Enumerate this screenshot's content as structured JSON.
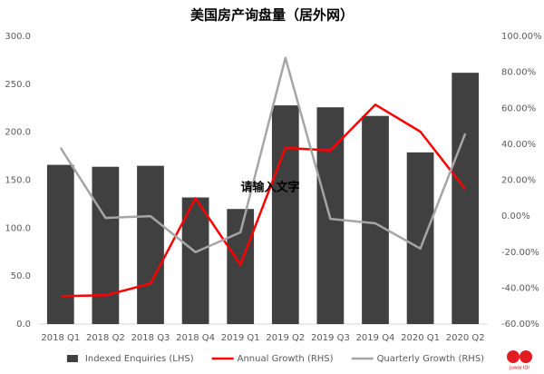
{
  "chart_data": {
    "type": "bar",
    "title": "美国房产询盘量（居外网）",
    "categories": [
      "2018 Q1",
      "2018 Q2",
      "2018 Q3",
      "2018 Q4",
      "2019 Q1",
      "2019 Q2",
      "2019 Q3",
      "2019 Q4",
      "2020 Q1",
      "2020 Q2"
    ],
    "series": [
      {
        "name": "Indexed Enquiries (LHS)",
        "type": "bar",
        "color": "#404040",
        "values": [
          166,
          164,
          165,
          132,
          120,
          228,
          226,
          217,
          179,
          262
        ]
      },
      {
        "name": "Annual Growth (RHS)",
        "type": "line",
        "axis": "y2",
        "color": "#ff0000",
        "values": [
          -44.5,
          -44,
          -37.5,
          10,
          -27,
          38,
          36.5,
          62,
          47,
          15
        ]
      },
      {
        "name": "Quarterly Growth (RHS)",
        "type": "line",
        "axis": "y2",
        "color": "#a5a5a5",
        "values": [
          38,
          -1,
          0,
          -20,
          -9,
          88,
          -1.5,
          -4,
          -18,
          46
        ]
      }
    ],
    "ylim": [
      0,
      300
    ],
    "yticks": [
      {
        "value": 0,
        "label": "0.0"
      },
      {
        "value": 50,
        "label": "50.0"
      },
      {
        "value": 100,
        "label": "100.0"
      },
      {
        "value": 150,
        "label": "150.0"
      },
      {
        "value": 200,
        "label": "200.0"
      },
      {
        "value": 250,
        "label": "250.0"
      },
      {
        "value": 300,
        "label": "300.0"
      }
    ],
    "y2lim": [
      -60,
      100
    ],
    "y2ticks": [
      {
        "value": -60,
        "label": "-60.00%"
      },
      {
        "value": -40,
        "label": "-40.00%"
      },
      {
        "value": -20,
        "label": "-20.00%"
      },
      {
        "value": 0,
        "label": "0.00%"
      },
      {
        "value": 20,
        "label": "20.00%"
      },
      {
        "value": 40,
        "label": "40.00%"
      },
      {
        "value": 60,
        "label": "60.00%"
      },
      {
        "value": 80,
        "label": "80.00%"
      },
      {
        "value": 100,
        "label": "100.00%"
      }
    ],
    "grid": false,
    "legend": "bottom",
    "annotation": "请输入文字",
    "logo": "Juwai IQI"
  }
}
